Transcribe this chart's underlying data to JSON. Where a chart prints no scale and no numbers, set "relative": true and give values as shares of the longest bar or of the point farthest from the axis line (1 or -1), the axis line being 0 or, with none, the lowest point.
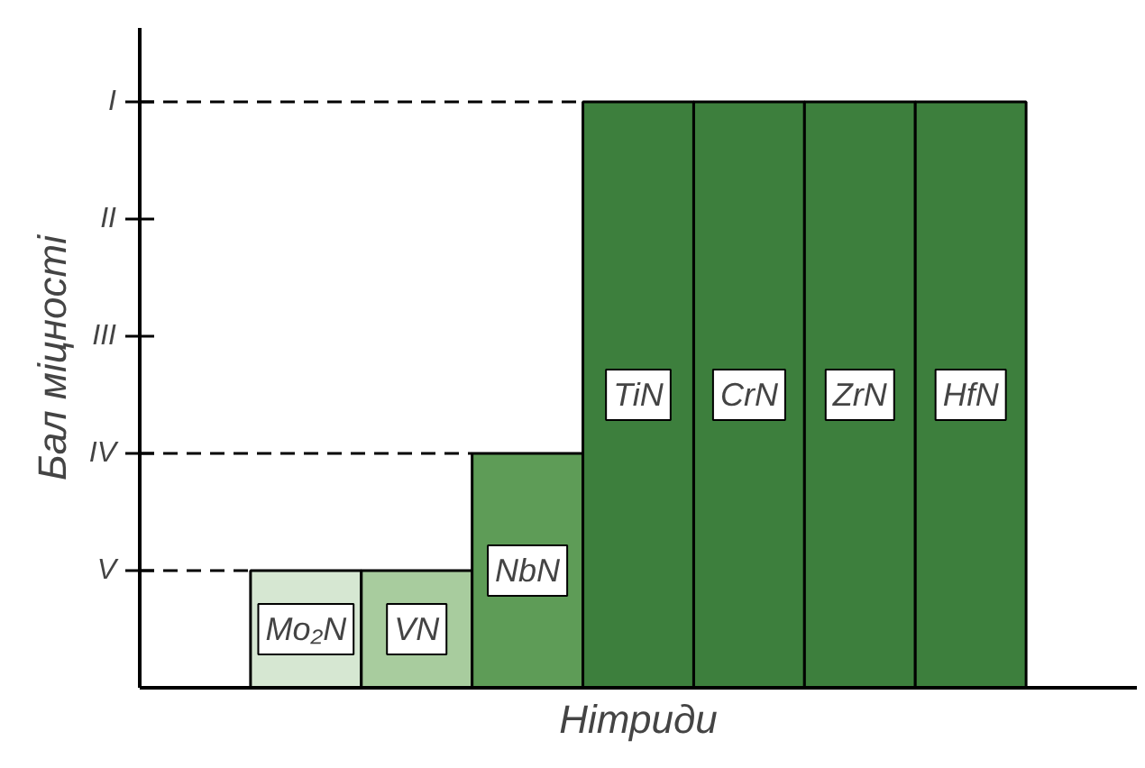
{
  "chart_data": {
    "type": "bar",
    "xlabel": "Нітриди",
    "ylabel": "Бал міцності",
    "relative": true,
    "categories": [
      null,
      "Mo₂N",
      "VN",
      "NbN",
      "TiN",
      "CrN",
      "ZrN",
      "HfN"
    ],
    "values": [
      null,
      0.2,
      0.2,
      0.4,
      1,
      1,
      1,
      1
    ],
    "colors": [
      "#ffffff",
      "#d6e7d2",
      "#a8cc9e",
      "#5e9c57",
      "#3d7f3d",
      "#3d7f3d",
      "#3d7f3d",
      "#3d7f3d"
    ],
    "annotations": [
      "V",
      "IV",
      "III",
      "II",
      "I"
    ],
    "ref_lines": [
      {
        "axis": "y",
        "value": 1,
        "line_style": "dashed"
      },
      {
        "axis": "y",
        "value": 0.4,
        "line_style": "dashed"
      },
      {
        "axis": "y",
        "value": 0.2,
        "line_style": "dashed"
      }
    ],
    "grid": false
  }
}
